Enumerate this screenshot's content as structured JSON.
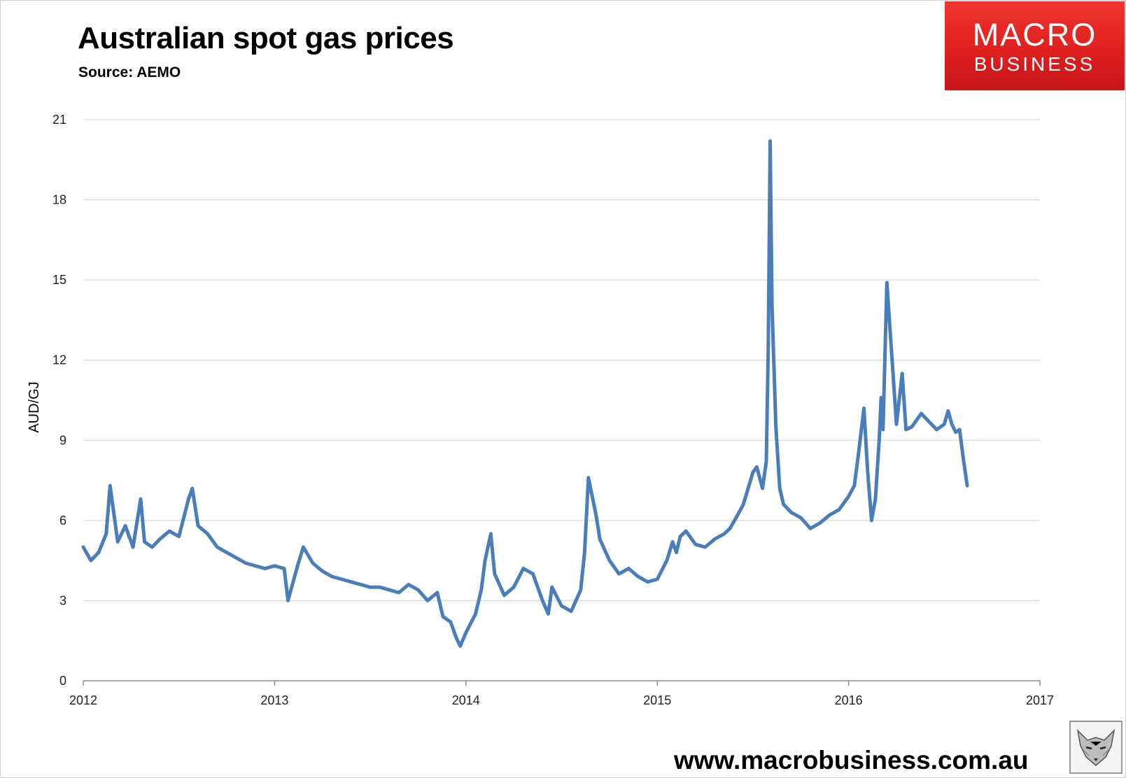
{
  "header": {
    "title": "Australian spot gas prices",
    "subtitle": "Source: AEMO"
  },
  "logo": {
    "line1": "MACRO",
    "line2": "BUSINESS"
  },
  "footer": {
    "url": "www.macrobusiness.com.au"
  },
  "icons": {
    "fox": "fox-head-icon"
  },
  "colors": {
    "series": "#4a7ebb",
    "logo_red": "#e0201f",
    "grid": "#d9d9d9"
  },
  "chart_data": {
    "type": "line",
    "title": "Australian spot gas prices",
    "subtitle": "Source: AEMO",
    "xlabel": "",
    "ylabel": "AUD/GJ",
    "xlim": [
      2012,
      2017
    ],
    "ylim": [
      0,
      21
    ],
    "x_ticks": [
      "2012",
      "2013",
      "2014",
      "2015",
      "2016",
      "2017"
    ],
    "y_ticks": [
      "0",
      "3",
      "6",
      "9",
      "12",
      "15",
      "18",
      "21"
    ],
    "grid": "horizontal",
    "legend": "none",
    "series": [
      {
        "name": "",
        "x": [
          2012.0,
          2012.04,
          2012.08,
          2012.12,
          2012.14,
          2012.18,
          2012.22,
          2012.26,
          2012.3,
          2012.32,
          2012.36,
          2012.4,
          2012.45,
          2012.5,
          2012.55,
          2012.57,
          2012.6,
          2012.65,
          2012.7,
          2012.75,
          2012.8,
          2012.85,
          2012.9,
          2012.95,
          2013.0,
          2013.05,
          2013.07,
          2013.12,
          2013.15,
          2013.2,
          2013.25,
          2013.3,
          2013.35,
          2013.4,
          2013.45,
          2013.5,
          2013.55,
          2013.6,
          2013.65,
          2013.7,
          2013.75,
          2013.8,
          2013.85,
          2013.88,
          2013.92,
          2013.95,
          2013.97,
          2014.0,
          2014.05,
          2014.08,
          2014.1,
          2014.13,
          2014.15,
          2014.2,
          2014.25,
          2014.3,
          2014.35,
          2014.4,
          2014.43,
          2014.45,
          2014.5,
          2014.55,
          2014.6,
          2014.62,
          2014.64,
          2014.68,
          2014.7,
          2014.75,
          2014.8,
          2014.85,
          2014.9,
          2014.95,
          2015.0,
          2015.05,
          2015.08,
          2015.1,
          2015.12,
          2015.15,
          2015.2,
          2015.25,
          2015.3,
          2015.35,
          2015.38,
          2015.42,
          2015.45,
          2015.5,
          2015.52,
          2015.55,
          2015.57,
          2015.58,
          2015.59,
          2015.6,
          2015.62,
          2015.64,
          2015.66,
          2015.7,
          2015.75,
          2015.8,
          2015.85,
          2015.9,
          2015.95,
          2016.0,
          2016.03,
          2016.05,
          2016.08,
          2016.1,
          2016.12,
          2016.14,
          2016.16,
          2016.17,
          2016.18,
          2016.2,
          2016.25,
          2016.28,
          2016.3,
          2016.33,
          2016.38,
          2016.42,
          2016.46,
          2016.5,
          2016.52,
          2016.54,
          2016.56,
          2016.58,
          2016.6,
          2016.62
        ],
        "y": [
          5.0,
          4.5,
          4.8,
          5.5,
          7.3,
          5.2,
          5.8,
          5.0,
          6.8,
          5.2,
          5.0,
          5.3,
          5.6,
          5.4,
          6.8,
          7.2,
          5.8,
          5.5,
          5.0,
          4.8,
          4.6,
          4.4,
          4.3,
          4.2,
          4.3,
          4.2,
          3.0,
          4.3,
          5.0,
          4.4,
          4.1,
          3.9,
          3.8,
          3.7,
          3.6,
          3.5,
          3.5,
          3.4,
          3.3,
          3.6,
          3.4,
          3.0,
          3.3,
          2.4,
          2.2,
          1.6,
          1.3,
          1.8,
          2.5,
          3.4,
          4.5,
          5.5,
          4.0,
          3.2,
          3.5,
          4.2,
          4.0,
          3.0,
          2.5,
          3.5,
          2.8,
          2.6,
          3.4,
          4.8,
          7.6,
          6.2,
          5.3,
          4.5,
          4.0,
          4.2,
          3.9,
          3.7,
          3.8,
          4.5,
          5.2,
          4.8,
          5.4,
          5.6,
          5.1,
          5.0,
          5.3,
          5.5,
          5.7,
          6.2,
          6.6,
          7.8,
          8.0,
          7.2,
          8.2,
          12.5,
          20.2,
          14.0,
          9.5,
          7.2,
          6.6,
          6.3,
          6.1,
          5.7,
          5.9,
          6.2,
          6.4,
          6.9,
          7.3,
          8.4,
          10.2,
          7.8,
          6.0,
          6.8,
          9.0,
          10.6,
          9.4,
          14.9,
          9.6,
          11.5,
          9.4,
          9.5,
          10.0,
          9.7,
          9.4,
          9.6,
          10.1,
          9.6,
          9.3,
          9.4,
          8.3,
          7.3
        ]
      }
    ]
  }
}
